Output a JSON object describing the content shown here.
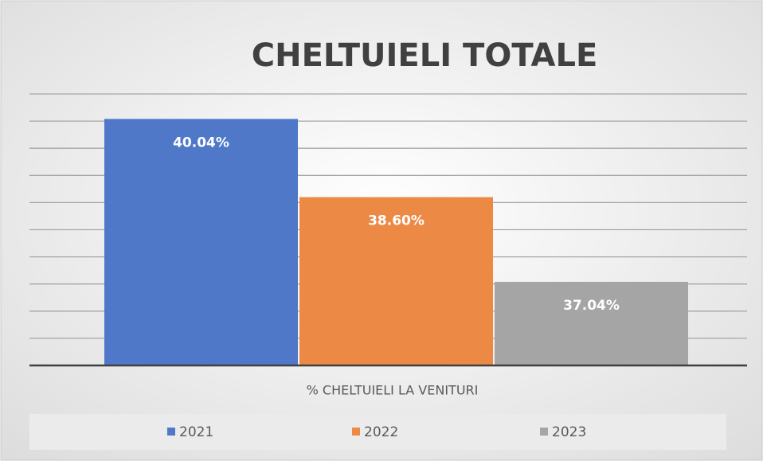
{
  "chart_data": {
    "type": "bar",
    "title": "CHELTUIELI TOTALE",
    "categories": [
      "% CHELTUIELI LA VENITURI"
    ],
    "series": [
      {
        "name": "2021",
        "color": "#4f78c9",
        "values": [
          40.04
        ],
        "value_labels": [
          "40.04%"
        ]
      },
      {
        "name": "2022",
        "color": "#ec8a45",
        "values": [
          38.6
        ],
        "value_labels": [
          "38.60%"
        ]
      },
      {
        "name": "2023",
        "color": "#a5a5a5",
        "values": [
          37.04
        ],
        "value_labels": [
          "37.04%"
        ]
      }
    ],
    "ylim": [
      35.5,
      40.5
    ],
    "yticks": [
      35.5,
      36,
      36.5,
      37,
      37.5,
      38,
      38.5,
      39,
      39.5,
      40,
      40.5
    ],
    "grid": true,
    "legend": "bottom"
  }
}
